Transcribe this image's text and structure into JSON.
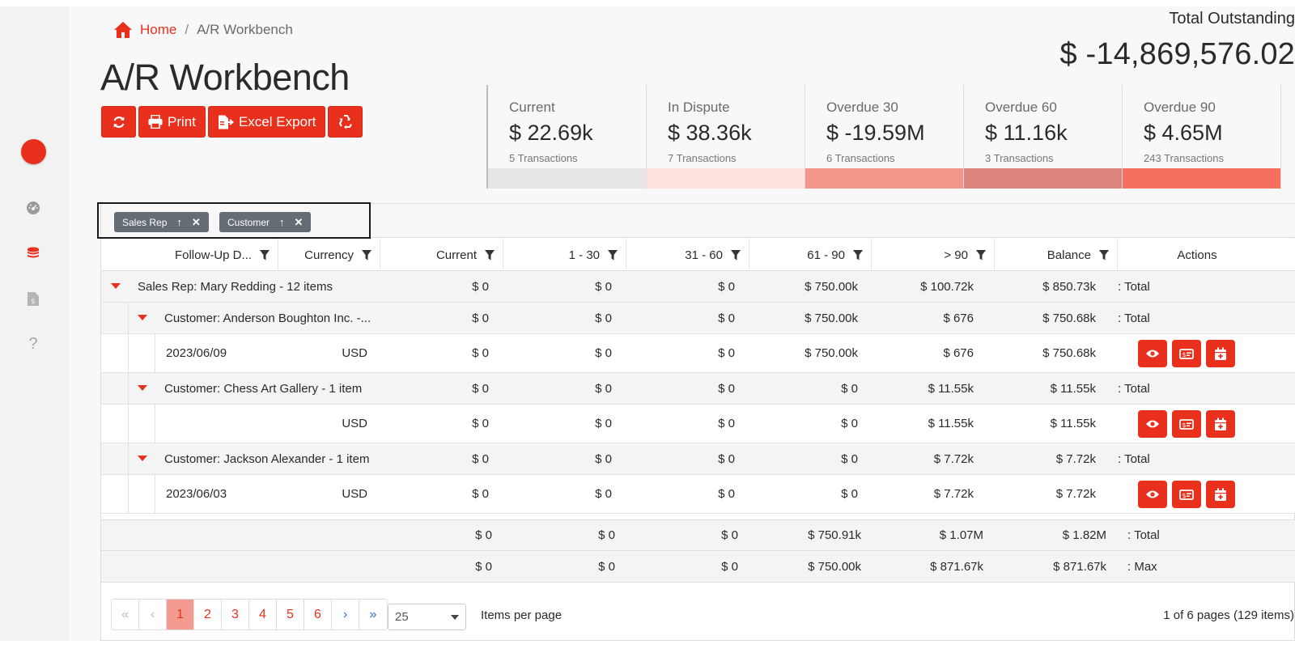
{
  "breadcrumb": {
    "home": "Home",
    "separator": "/",
    "current": "A/R Workbench"
  },
  "page_title": "A/R Workbench",
  "toolbar": {
    "print": "Print",
    "excel_export": "Excel Export"
  },
  "outstanding": {
    "label": "Total Outstanding",
    "value": "$ -14,869,576.02"
  },
  "cards": [
    {
      "title": "Current",
      "value": "$ 22.69k",
      "sub": "5 Transactions",
      "color": "#e6e6e6"
    },
    {
      "title": "In Dispute",
      "value": "$ 38.36k",
      "sub": "7 Transactions",
      "color": "#fde4e1"
    },
    {
      "title": "Overdue 30",
      "value": "$ -19.59M",
      "sub": "6 Transactions",
      "color": "#f3968a"
    },
    {
      "title": "Overdue 60",
      "value": "$ 11.16k",
      "sub": "3 Transactions",
      "color": "#db857c"
    },
    {
      "title": "Overdue 90",
      "value": "$ 4.65M",
      "sub": "243 Transactions",
      "color": "#f6705f"
    }
  ],
  "group_chips": [
    {
      "label": "Sales Rep"
    },
    {
      "label": "Customer"
    }
  ],
  "columns": {
    "followup": "Follow-Up D...",
    "currency": "Currency",
    "current": "Current",
    "d1_30": "1 - 30",
    "d31_60": "31 - 60",
    "d61_90": "61 - 90",
    "over90": "> 90",
    "balance": "Balance",
    "actions": "Actions"
  },
  "rows": {
    "rep": {
      "label": "Sales Rep: Mary Redding - 12 items",
      "current": "$ 0",
      "d1_30": "$ 0",
      "d31_60": "$ 0",
      "d61_90": "$ 750.00k",
      "over90": "$ 100.72k",
      "balance": "$ 850.73k",
      "agg": ": Total"
    },
    "cust1": {
      "label": "Customer: Anderson Boughton Inc. -...",
      "current": "$ 0",
      "d1_30": "$ 0",
      "d31_60": "$ 0",
      "d61_90": "$ 750.00k",
      "over90": "$ 676",
      "balance": "$ 750.68k",
      "agg": ": Total"
    },
    "data1": {
      "date": "2023/06/09",
      "currency": "USD",
      "current": "$ 0",
      "d1_30": "$ 0",
      "d31_60": "$ 0",
      "d61_90": "$ 750.00k",
      "over90": "$ 676",
      "balance": "$ 750.68k"
    },
    "cust2": {
      "label": "Customer: Chess Art Gallery - 1 item",
      "current": "$ 0",
      "d1_30": "$ 0",
      "d31_60": "$ 0",
      "d61_90": "$ 0",
      "over90": "$ 11.55k",
      "balance": "$ 11.55k",
      "agg": ": Total"
    },
    "data2": {
      "date": "",
      "currency": "USD",
      "current": "$ 0",
      "d1_30": "$ 0",
      "d31_60": "$ 0",
      "d61_90": "$ 0",
      "over90": "$ 11.55k",
      "balance": "$ 11.55k"
    },
    "cust3": {
      "label": "Customer: Jackson Alexander - 1 item",
      "current": "$ 0",
      "d1_30": "$ 0",
      "d31_60": "$ 0",
      "d61_90": "$ 0",
      "over90": "$ 7.72k",
      "balance": "$ 7.72k",
      "agg": ": Total"
    },
    "data3": {
      "date": "2023/06/03",
      "currency": "USD",
      "current": "$ 0",
      "d1_30": "$ 0",
      "d31_60": "$ 0",
      "d61_90": "$ 0",
      "over90": "$ 7.72k",
      "balance": "$ 7.72k"
    }
  },
  "footer": {
    "total": {
      "current": "$ 0",
      "d1_30": "$ 0",
      "d31_60": "$ 0",
      "d61_90": "$ 750.91k",
      "over90": "$ 1.07M",
      "balance": "$ 1.82M",
      "agg": ": Total"
    },
    "max": {
      "current": "$ 0",
      "d1_30": "$ 0",
      "d31_60": "$ 0",
      "d61_90": "$ 750.00k",
      "over90": "$ 871.67k",
      "balance": "$ 871.67k",
      "agg": ": Max"
    }
  },
  "pager": {
    "first": "«",
    "prev": "‹",
    "pages": [
      "1",
      "2",
      "3",
      "4",
      "5",
      "6"
    ],
    "active_page": "1",
    "next": "›",
    "last": "»",
    "page_size": "25",
    "items_per_page_label": "Items per page",
    "info": "1 of 6 pages (129 items)"
  },
  "colors": {
    "accent": "#e8301c",
    "chip": "#656d74"
  }
}
